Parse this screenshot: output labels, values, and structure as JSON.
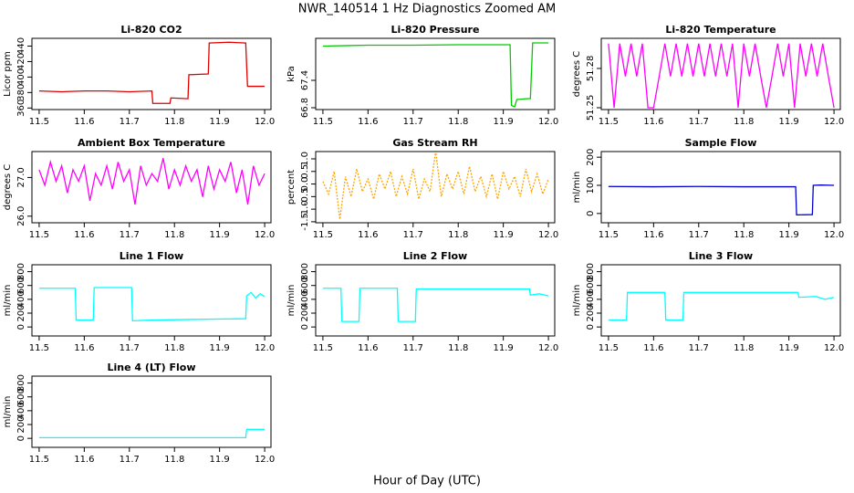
{
  "title": "NWR_140514  1 Hz Diagnostics Zoomed AM",
  "xlabel": "Hour of Day (UTC)",
  "chart_data": [
    {
      "type": "line",
      "title": "Li-820 CO2",
      "ylabel": "Licor ppm",
      "color": "#e00000",
      "x": [
        11.5,
        11.55,
        11.6,
        11.65,
        11.7,
        11.75,
        11.752,
        11.79,
        11.792,
        11.83,
        11.832,
        11.875,
        11.877,
        11.92,
        11.958,
        11.962,
        12.0
      ],
      "values": [
        382,
        381,
        382,
        382,
        381,
        382,
        366,
        366,
        373,
        372,
        403,
        404,
        444,
        445,
        444,
        388,
        388
      ],
      "xlim": [
        11.484,
        12.014
      ],
      "xticks": [
        11.5,
        11.6,
        11.7,
        11.8,
        11.9,
        {
          "value": 12,
          "label": "12.0"
        }
      ],
      "ylim": [
        358,
        450
      ],
      "yticks": [
        360,
        380,
        400,
        420,
        440
      ]
    },
    {
      "type": "line",
      "title": "Li-820 Pressure",
      "ylabel": "kPa",
      "color": "#00cc00",
      "x": [
        11.5,
        11.6,
        11.7,
        11.8,
        11.9,
        11.915,
        11.918,
        11.925,
        11.93,
        11.955,
        11.96,
        11.965,
        12.0
      ],
      "values": [
        68.15,
        68.17,
        68.17,
        68.18,
        68.18,
        68.18,
        66.85,
        66.82,
        66.98,
        67.0,
        67.0,
        68.22,
        68.22
      ],
      "xlim": [
        11.484,
        12.014
      ],
      "xticks": [
        11.5,
        11.6,
        11.7,
        11.8,
        11.9,
        {
          "value": 12,
          "label": "12.0"
        }
      ],
      "ylim": [
        66.76,
        68.32
      ],
      "yticks": [
        66.8,
        67.4
      ]
    },
    {
      "type": "line",
      "title": "Li-820 Temperature",
      "ylabel": "degrees C",
      "color": "#ff00ff",
      "x": [
        11.5,
        11.5125,
        11.525,
        11.5375,
        11.55,
        11.5625,
        11.575,
        11.5875,
        11.6,
        11.6125,
        11.625,
        11.6375,
        11.65,
        11.6625,
        11.675,
        11.6875,
        11.7,
        11.7125,
        11.725,
        11.7375,
        11.75,
        11.7625,
        11.775,
        11.7875,
        11.8,
        11.8125,
        11.825,
        11.8375,
        11.85,
        11.8625,
        11.875,
        11.8875,
        11.9,
        11.9125,
        11.925,
        11.9375,
        11.95,
        11.9625,
        11.975,
        11.9875,
        12.0
      ],
      "values": [
        51.299,
        51.25,
        51.299,
        51.274,
        51.299,
        51.274,
        51.299,
        51.25,
        51.25,
        51.274,
        51.299,
        51.274,
        51.299,
        51.274,
        51.299,
        51.274,
        51.299,
        51.274,
        51.299,
        51.274,
        51.299,
        51.274,
        51.299,
        51.25,
        51.299,
        51.274,
        51.299,
        51.274,
        51.25,
        51.274,
        51.299,
        51.274,
        51.299,
        51.25,
        51.299,
        51.274,
        51.299,
        51.274,
        51.299,
        51.274,
        51.25
      ],
      "xlim": [
        11.484,
        12.014
      ],
      "xticks": [
        11.5,
        11.6,
        11.7,
        11.8,
        11.9,
        {
          "value": 12,
          "label": "12.0"
        }
      ],
      "ylim": [
        51.2486,
        51.303
      ],
      "yticks": [
        51.25,
        51.28
      ]
    },
    {
      "type": "line",
      "title": "Ambient Box Temperature",
      "ylabel": "degrees C",
      "color": "#ff00ff",
      "x": [
        11.5,
        11.5125,
        11.525,
        11.5375,
        11.55,
        11.5625,
        11.575,
        11.5875,
        11.6,
        11.6125,
        11.625,
        11.6375,
        11.65,
        11.6625,
        11.675,
        11.6875,
        11.7,
        11.7125,
        11.725,
        11.7375,
        11.75,
        11.7625,
        11.775,
        11.7875,
        11.8,
        11.8125,
        11.825,
        11.8375,
        11.85,
        11.8625,
        11.875,
        11.8875,
        11.9,
        11.9125,
        11.925,
        11.9375,
        11.95,
        11.9625,
        11.975,
        11.9875,
        12.0
      ],
      "values": [
        27.2,
        26.8,
        27.4,
        26.9,
        27.3,
        26.6,
        27.2,
        26.9,
        27.3,
        26.4,
        27.1,
        26.8,
        27.3,
        26.7,
        27.4,
        26.9,
        27.2,
        26.3,
        27.3,
        26.8,
        27.1,
        26.9,
        27.5,
        26.7,
        27.2,
        26.8,
        27.3,
        26.9,
        27.2,
        26.5,
        27.3,
        26.7,
        27.2,
        26.9,
        27.4,
        26.6,
        27.2,
        26.3,
        27.3,
        26.8,
        27.1
      ],
      "xlim": [
        11.484,
        12.014
      ],
      "xticks": [
        11.5,
        11.6,
        11.7,
        11.8,
        11.9,
        {
          "value": 12,
          "label": "12.0"
        }
      ],
      "ylim": [
        25.83,
        27.67
      ],
      "yticks": [
        {
          "value": 26,
          "label": "26.0"
        },
        {
          "value": 27,
          "label": "27.0"
        }
      ]
    },
    {
      "type": "line",
      "title": "Gas Stream RH",
      "ylabel": "percent",
      "color": "#ffa500",
      "dashed": true,
      "x": [
        11.5,
        11.5125,
        11.525,
        11.5375,
        11.55,
        11.5625,
        11.575,
        11.5875,
        11.6,
        11.6125,
        11.625,
        11.6375,
        11.65,
        11.6625,
        11.675,
        11.6875,
        11.7,
        11.7125,
        11.725,
        11.7375,
        11.75,
        11.7625,
        11.775,
        11.7875,
        11.8,
        11.8125,
        11.825,
        11.8375,
        11.85,
        11.8625,
        11.875,
        11.8875,
        11.9,
        11.9125,
        11.925,
        11.9375,
        11.95,
        11.9625,
        11.975,
        11.9875,
        12.0
      ],
      "values": [
        0.1,
        -0.4,
        0.5,
        -1.4,
        0.3,
        -0.5,
        0.6,
        -0.3,
        0.2,
        -0.6,
        0.4,
        -0.2,
        0.5,
        -0.5,
        0.3,
        -0.4,
        0.6,
        -0.6,
        0.2,
        -0.3,
        1.3,
        -0.5,
        0.4,
        -0.2,
        0.5,
        -0.4,
        0.7,
        -0.3,
        0.3,
        -0.5,
        0.4,
        -0.6,
        0.5,
        -0.2,
        0.3,
        -0.5,
        0.6,
        -0.3,
        0.4,
        -0.4,
        0.2
      ],
      "xlim": [
        11.484,
        12.014
      ],
      "xticks": [
        11.5,
        11.6,
        11.7,
        11.8,
        11.9,
        {
          "value": 12,
          "label": "12.0"
        }
      ],
      "ylim": [
        -1.54,
        1.29
      ],
      "yticks": [
        -1.5,
        {
          "value": -1,
          "label": "-1.0"
        },
        -0.5,
        {
          "value": 0,
          "label": "0.0"
        },
        0.5,
        {
          "value": 1,
          "label": "1.0"
        }
      ]
    },
    {
      "type": "line",
      "title": "Sample Flow",
      "ylabel": "ml/min",
      "color": "#0000cc",
      "x": [
        11.5,
        11.6,
        11.7,
        11.8,
        11.9,
        11.915,
        11.917,
        11.952,
        11.954,
        11.97,
        12.0
      ],
      "values": [
        96,
        95,
        96,
        95,
        95,
        95,
        -5,
        -4,
        100,
        101,
        100
      ],
      "xlim": [
        11.484,
        12.014
      ],
      "xticks": [
        11.5,
        11.6,
        11.7,
        11.8,
        11.9,
        {
          "value": 12,
          "label": "12.0"
        }
      ],
      "ylim": [
        -33,
        220
      ],
      "yticks": [
        0,
        100,
        200
      ]
    },
    {
      "type": "line",
      "title": "Line 1 Flow",
      "ylabel": "ml/min",
      "color": "#00ffff",
      "x": [
        11.5,
        11.58,
        11.582,
        11.62,
        11.622,
        11.705,
        11.707,
        11.75,
        11.85,
        11.958,
        11.96,
        11.97,
        11.98,
        11.99,
        12.0
      ],
      "values": [
        560,
        560,
        100,
        100,
        570,
        570,
        90,
        100,
        110,
        120,
        450,
        500,
        420,
        480,
        440
      ],
      "xlim": [
        11.484,
        12.014
      ],
      "xticks": [
        11.5,
        11.6,
        11.7,
        11.8,
        11.9,
        {
          "value": 12,
          "label": "12.0"
        }
      ],
      "ylim": [
        -130,
        900
      ],
      "yticks": [
        0,
        200,
        400,
        600,
        800
      ]
    },
    {
      "type": "line",
      "title": "Line 2 Flow",
      "ylabel": "ml/min",
      "color": "#00ffff",
      "x": [
        11.5,
        11.54,
        11.542,
        11.58,
        11.582,
        11.665,
        11.667,
        11.705,
        11.707,
        11.8,
        11.9,
        11.958,
        11.96,
        11.98,
        12.0
      ],
      "values": [
        560,
        560,
        80,
        80,
        560,
        560,
        80,
        80,
        550,
        550,
        550,
        550,
        460,
        480,
        450
      ],
      "xlim": [
        11.484,
        12.014
      ],
      "xticks": [
        11.5,
        11.6,
        11.7,
        11.8,
        11.9,
        {
          "value": 12,
          "label": "12.0"
        }
      ],
      "ylim": [
        -130,
        900
      ],
      "yticks": [
        0,
        200,
        400,
        600,
        800
      ]
    },
    {
      "type": "line",
      "title": "Line 3 Flow",
      "ylabel": "ml/min",
      "color": "#00ffff",
      "x": [
        11.5,
        11.54,
        11.542,
        11.625,
        11.627,
        11.665,
        11.667,
        11.8,
        11.92,
        11.922,
        11.96,
        11.98,
        12.0
      ],
      "values": [
        100,
        100,
        500,
        500,
        100,
        100,
        500,
        500,
        500,
        430,
        440,
        400,
        430
      ],
      "xlim": [
        11.484,
        12.014
      ],
      "xticks": [
        11.5,
        11.6,
        11.7,
        11.8,
        11.9,
        {
          "value": 12,
          "label": "12.0"
        }
      ],
      "ylim": [
        -130,
        900
      ],
      "yticks": [
        0,
        200,
        400,
        600,
        800
      ]
    },
    {
      "type": "line",
      "title": "Line 4 (LT) Flow",
      "ylabel": "ml/min",
      "color": "#00ffff",
      "x": [
        11.5,
        11.7,
        11.958,
        11.96,
        12.0
      ],
      "values": [
        10,
        10,
        10,
        130,
        130
      ],
      "xlim": [
        11.484,
        12.014
      ],
      "xticks": [
        11.5,
        11.6,
        11.7,
        11.8,
        11.9,
        {
          "value": 12,
          "label": "12.0"
        }
      ],
      "ylim": [
        -130,
        900
      ],
      "yticks": [
        0,
        200,
        400,
        600,
        800
      ]
    }
  ]
}
